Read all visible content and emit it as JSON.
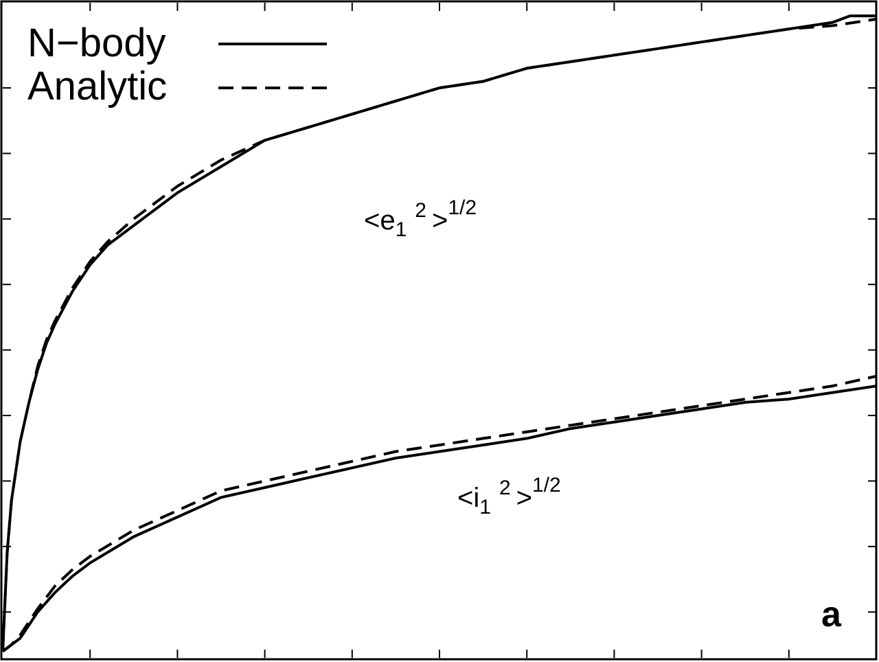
{
  "chart_data": {
    "type": "line",
    "title": "",
    "xlabel": "",
    "ylabel": "",
    "xlim": [
      0,
      10
    ],
    "ylim": [
      0,
      10
    ],
    "grid": false,
    "legend_position": "top-left",
    "x_ticks": [
      1,
      2,
      3,
      4,
      5,
      6,
      7,
      8,
      9
    ],
    "y_ticks_left": [
      0.7,
      1.7,
      2.7,
      3.7,
      4.7,
      5.7,
      6.7,
      7.7,
      8.7
    ],
    "y_ticks_right": [
      0.7,
      1.7,
      2.7,
      3.7,
      4.7,
      5.7,
      6.7,
      7.7,
      8.7
    ],
    "legend": [
      {
        "label": "N−body",
        "style": "solid"
      },
      {
        "label": "Analytic",
        "style": "dashed"
      }
    ],
    "series": [
      {
        "group": "e",
        "style": "solid",
        "x": [
          0,
          0.05,
          0.1,
          0.2,
          0.3,
          0.4,
          0.5,
          0.6,
          0.8,
          1.0,
          1.2,
          1.5,
          2.0,
          2.5,
          3.0,
          3.5,
          4.0,
          4.5,
          5.0,
          5.5,
          6.0,
          6.5,
          7.0,
          7.5,
          8.0,
          8.5,
          9.0,
          9.5,
          9.7,
          10.0
        ],
        "y": [
          0.1,
          1.6,
          2.4,
          3.3,
          3.9,
          4.4,
          4.8,
          5.1,
          5.6,
          6.0,
          6.3,
          6.6,
          7.1,
          7.5,
          7.9,
          8.1,
          8.3,
          8.5,
          8.7,
          8.8,
          9.0,
          9.1,
          9.2,
          9.3,
          9.4,
          9.5,
          9.6,
          9.7,
          9.8,
          9.8
        ]
      },
      {
        "group": "e",
        "style": "dashed",
        "x": [
          0,
          0.05,
          0.1,
          0.2,
          0.3,
          0.4,
          0.5,
          0.6,
          0.8,
          1.0,
          1.2,
          1.5,
          2.0,
          2.5,
          3.0,
          3.5,
          4.0,
          4.5,
          5.0,
          5.5,
          6.0,
          6.5,
          7.0,
          7.5,
          8.0,
          8.5,
          9.0,
          9.5,
          10.0
        ],
        "y": [
          0.1,
          1.6,
          2.4,
          3.3,
          3.9,
          4.45,
          4.85,
          5.15,
          5.65,
          6.05,
          6.35,
          6.7,
          7.2,
          7.6,
          7.9,
          8.1,
          8.3,
          8.5,
          8.7,
          8.8,
          9.0,
          9.1,
          9.2,
          9.3,
          9.4,
          9.5,
          9.6,
          9.65,
          9.75
        ]
      },
      {
        "group": "i",
        "style": "solid",
        "x": [
          0,
          0.1,
          0.2,
          0.4,
          0.6,
          0.8,
          1.0,
          1.5,
          2.0,
          2.5,
          3.0,
          3.5,
          4.0,
          4.5,
          5.0,
          5.5,
          6.0,
          6.5,
          7.0,
          7.5,
          8.0,
          8.5,
          9.0,
          9.5,
          10.0
        ],
        "y": [
          0.1,
          0.2,
          0.3,
          0.7,
          1.0,
          1.25,
          1.45,
          1.85,
          2.15,
          2.45,
          2.6,
          2.75,
          2.9,
          3.05,
          3.15,
          3.25,
          3.35,
          3.5,
          3.6,
          3.7,
          3.8,
          3.9,
          3.95,
          4.05,
          4.15
        ]
      },
      {
        "group": "i",
        "style": "dashed",
        "x": [
          0,
          0.1,
          0.2,
          0.4,
          0.6,
          0.8,
          1.0,
          1.5,
          2.0,
          2.5,
          3.0,
          3.5,
          4.0,
          4.5,
          5.0,
          5.5,
          6.0,
          6.5,
          7.0,
          7.5,
          8.0,
          8.5,
          9.0,
          9.5,
          10.0
        ],
        "y": [
          0.1,
          0.2,
          0.35,
          0.75,
          1.1,
          1.35,
          1.55,
          1.95,
          2.25,
          2.55,
          2.7,
          2.85,
          3.0,
          3.15,
          3.25,
          3.35,
          3.45,
          3.55,
          3.65,
          3.75,
          3.85,
          3.95,
          4.05,
          4.15,
          4.3
        ]
      }
    ],
    "annotations": [
      {
        "name": "e-curve-label",
        "base": "<e",
        "sub": "1",
        "sup1": "2",
        "close": ">",
        "sup2": "1/2",
        "x": 5.1,
        "y": 6.9
      },
      {
        "name": "i-curve-label",
        "base": "<i",
        "sub": "1",
        "sup1": "2",
        "close": ">",
        "sup2": "1/2",
        "x": 6.2,
        "y": 1.7
      }
    ],
    "panel_letter": "a"
  }
}
